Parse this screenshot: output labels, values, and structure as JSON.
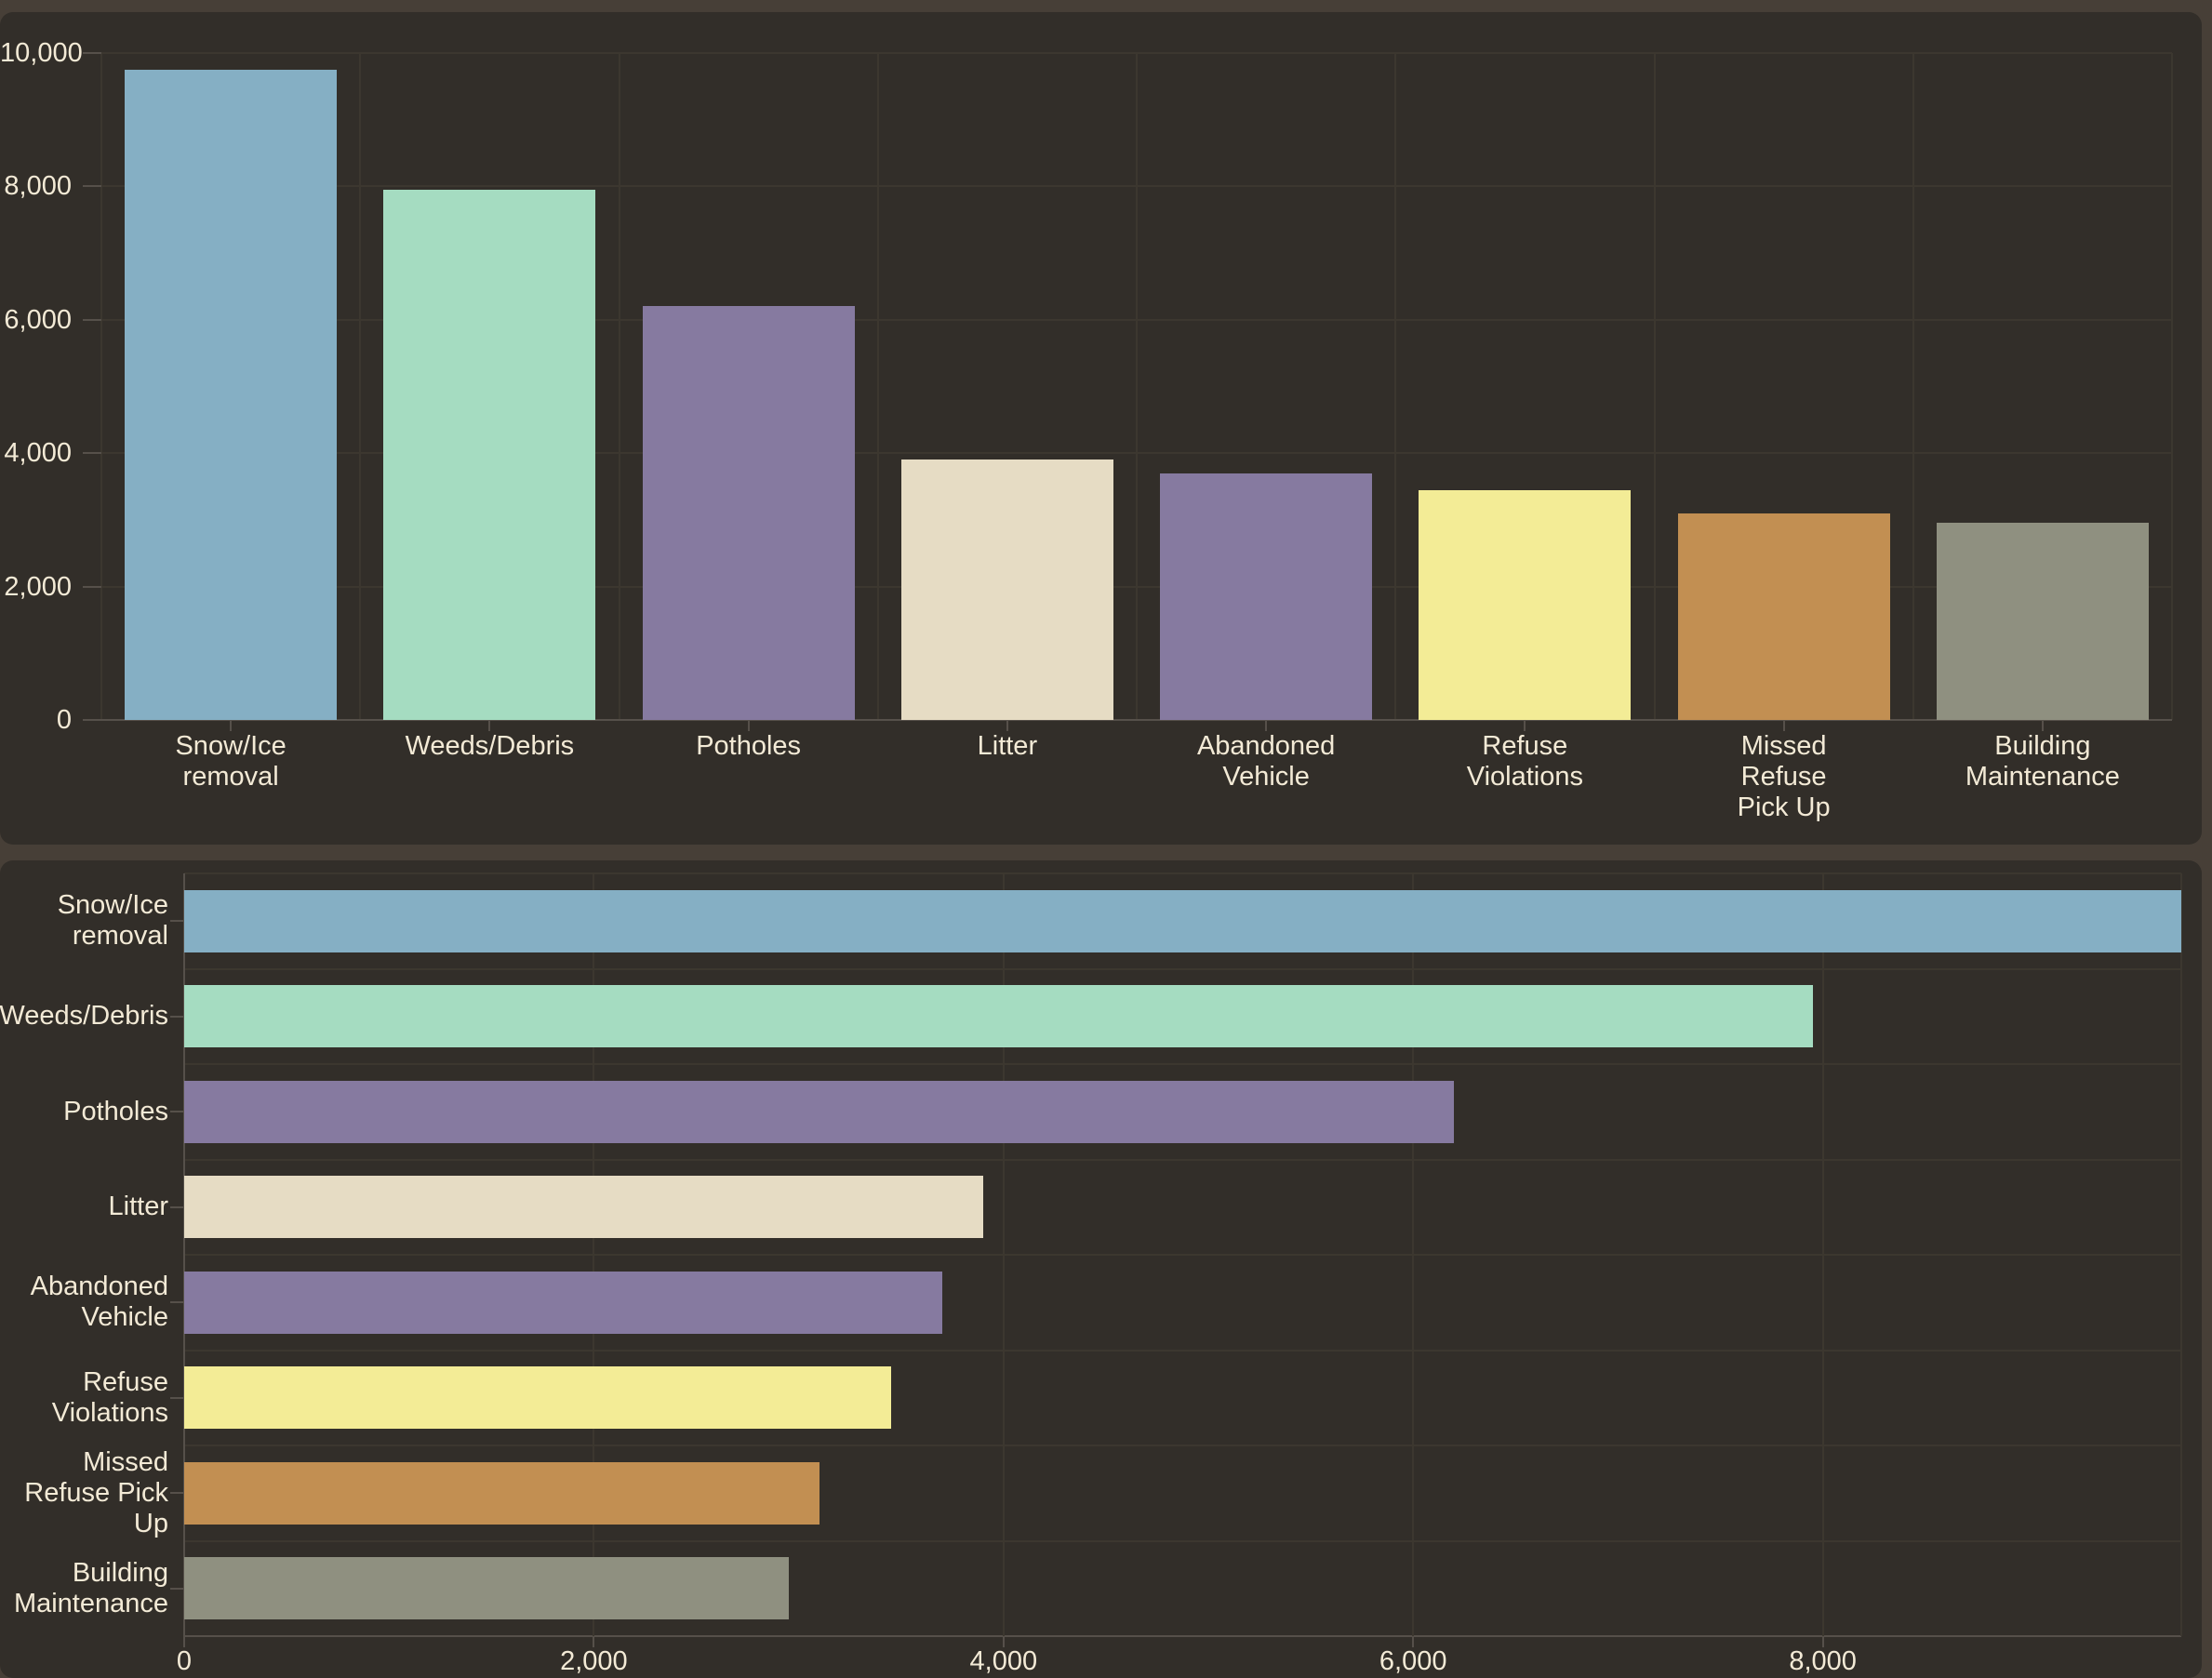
{
  "page": {
    "background": "#473f37",
    "panel_background": "#322e29"
  },
  "colors": {
    "text": "#f3ead6",
    "grid": "#3c372f",
    "axis": "#56504a"
  },
  "chart_data": [
    {
      "type": "bar",
      "orientation": "vertical",
      "title": "",
      "legend": false,
      "grid": true,
      "categories": [
        "Snow/Ice removal",
        "Weeds/Debris",
        "Potholes",
        "Litter",
        "Abandoned Vehicle",
        "Refuse Violations",
        "Missed Refuse Pick Up",
        "Building Maintenance"
      ],
      "category_label_lines": [
        [
          "Snow/Ice",
          "removal"
        ],
        [
          "Weeds/Debris"
        ],
        [
          "Potholes"
        ],
        [
          "Litter"
        ],
        [
          "Abandoned",
          "Vehicle"
        ],
        [
          "Refuse",
          "Violations"
        ],
        [
          "Missed",
          "Refuse",
          "Pick Up"
        ],
        [
          "Building",
          "Maintenance"
        ]
      ],
      "values": [
        9750,
        7950,
        6200,
        3900,
        3700,
        3450,
        3100,
        2950
      ],
      "bar_colors": [
        "#85afc4",
        "#a5dcc1",
        "#867aa0",
        "#e6dcc4",
        "#867aa0",
        "#f3ec96",
        "#c28f52",
        "#8f9080"
      ],
      "value_axis": {
        "min": 0,
        "max": 10000,
        "tick_values": [
          0,
          2000,
          4000,
          6000,
          8000,
          10000
        ],
        "tick_labels": [
          "0",
          "2,000",
          "4,000",
          "6,000",
          "8,000",
          "10,000"
        ]
      }
    },
    {
      "type": "bar",
      "orientation": "horizontal",
      "title": "",
      "legend": false,
      "grid": true,
      "categories": [
        "Snow/Ice removal",
        "Weeds/Debris",
        "Potholes",
        "Litter",
        "Abandoned Vehicle",
        "Refuse Violations",
        "Missed Refuse Pick Up",
        "Building Maintenance"
      ],
      "category_label_lines": [
        [
          "Snow/Ice",
          "removal"
        ],
        [
          "Weeds/Debris"
        ],
        [
          "Potholes"
        ],
        [
          "Litter"
        ],
        [
          "Abandoned",
          "Vehicle"
        ],
        [
          "Refuse",
          "Violations"
        ],
        [
          "Missed",
          "Refuse Pick",
          "Up"
        ],
        [
          "Building",
          "Maintenance"
        ]
      ],
      "values": [
        9750,
        7950,
        6200,
        3900,
        3700,
        3450,
        3100,
        2950
      ],
      "bar_colors": [
        "#85afc4",
        "#a5dcc1",
        "#867aa0",
        "#e6dcc4",
        "#867aa0",
        "#f3ec96",
        "#c28f52",
        "#8f9080"
      ],
      "value_axis": {
        "min": 0,
        "max": 9750,
        "tick_values": [
          0,
          2000,
          4000,
          6000,
          8000
        ],
        "tick_labels": [
          "0",
          "2,000",
          "4,000",
          "6,000",
          "8,000"
        ]
      }
    }
  ]
}
